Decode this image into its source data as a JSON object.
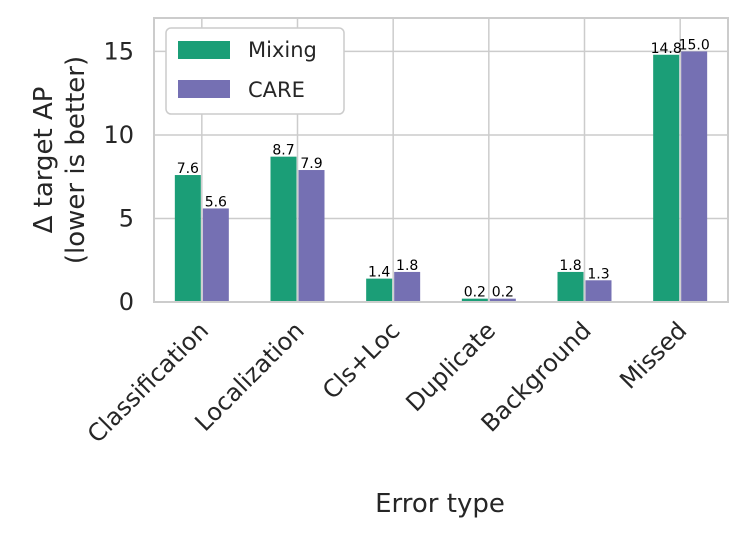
{
  "chart_data": {
    "type": "bar",
    "categories": [
      "Classification",
      "Localization",
      "Cls+Loc",
      "Duplicate",
      "Background",
      "Missed"
    ],
    "series": [
      {
        "name": "Mixing",
        "color": "#1b9e77",
        "values": [
          7.6,
          8.7,
          1.4,
          0.2,
          1.8,
          14.8
        ],
        "labels": [
          "7.6",
          "8.7",
          "1.4",
          "0.2",
          "1.8",
          "14.8"
        ]
      },
      {
        "name": "CARE",
        "color": "#7570b3",
        "values": [
          5.6,
          7.9,
          1.8,
          0.2,
          1.3,
          15.0
        ],
        "labels": [
          "5.6",
          "7.9",
          "1.8",
          "0.2",
          "1.3",
          "15.0"
        ]
      }
    ],
    "xlabel": "Error type",
    "ylabel_line1": "Δ target AP",
    "ylabel_line2": "(lower is better)",
    "ylim": [
      0,
      17
    ],
    "yticks": [
      0,
      5,
      10,
      15
    ],
    "ytick_labels": [
      "0",
      "5",
      "10",
      "15"
    ],
    "grid": true,
    "legend_position": "top-left"
  }
}
